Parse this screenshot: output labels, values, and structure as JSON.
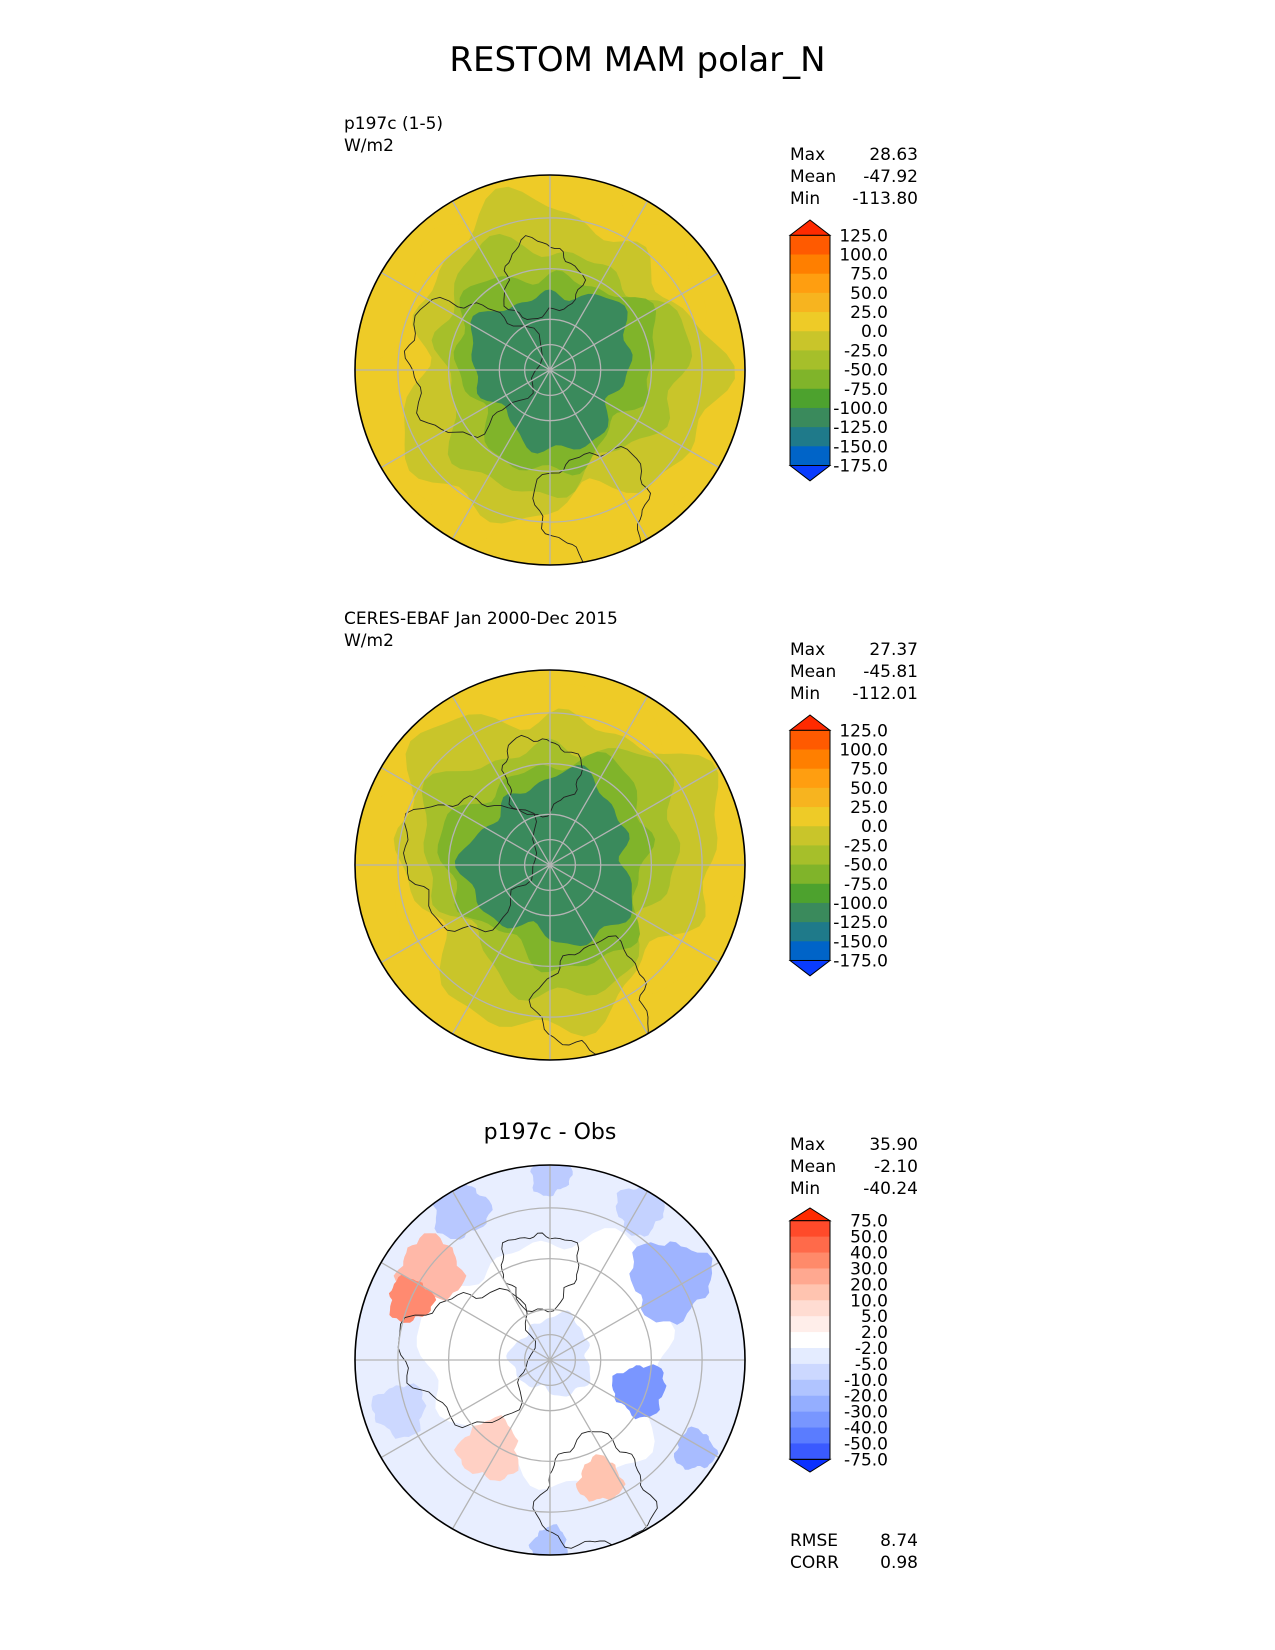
{
  "title": "RESTOM MAM polar_N",
  "chart_data": [
    {
      "type": "heatmap",
      "projection": "north-polar-stereographic",
      "label_left_1": "p197c (1-5)",
      "label_left_2": "W/m2",
      "center_title": "",
      "stats": {
        "max_label": "Max",
        "max": "28.63",
        "mean_label": "Mean",
        "mean": "-47.92",
        "min_label": "Min",
        "min": "-113.80"
      },
      "colorbar": {
        "levels": [
          "125.0",
          "100.0",
          "75.0",
          "50.0",
          "25.0",
          "0.0",
          "-25.0",
          "-50.0",
          "-75.0",
          "-100.0",
          "-125.0",
          "-150.0",
          "-175.0"
        ],
        "colors": [
          "#ff2a00",
          "#ff5a00",
          "#ff7f00",
          "#ff9e10",
          "#f7b41f",
          "#eecb27",
          "#c9c52a",
          "#a6bf2a",
          "#80b42a",
          "#4da22e",
          "#3a8a5c",
          "#1f7a8a",
          "#0064c8",
          "#0a3cff"
        ]
      },
      "rings": [
        {
          "r": 0.94,
          "color": "#eecb27"
        },
        {
          "r": 0.78,
          "color": "#c9c52a"
        },
        {
          "r": 0.62,
          "color": "#a6bf2a"
        },
        {
          "r": 0.5,
          "color": "#80b42a"
        },
        {
          "r": 0.4,
          "color": "#3a8a5c"
        }
      ],
      "gridlines": "on"
    },
    {
      "type": "heatmap",
      "projection": "north-polar-stereographic",
      "label_left_1": "CERES-EBAF Jan 2000-Dec 2015",
      "label_left_2": "W/m2",
      "center_title": "",
      "stats": {
        "max_label": "Max",
        "max": "27.37",
        "mean_label": "Mean",
        "mean": "-45.81",
        "min_label": "Min",
        "min": "-112.01"
      },
      "colorbar": {
        "levels": [
          "125.0",
          "100.0",
          "75.0",
          "50.0",
          "25.0",
          "0.0",
          "-25.0",
          "-50.0",
          "-75.0",
          "-100.0",
          "-125.0",
          "-150.0",
          "-175.0"
        ],
        "colors": [
          "#ff2a00",
          "#ff5a00",
          "#ff7f00",
          "#ff9e10",
          "#f7b41f",
          "#eecb27",
          "#c9c52a",
          "#a6bf2a",
          "#80b42a",
          "#4da22e",
          "#3a8a5c",
          "#1f7a8a",
          "#0064c8",
          "#0a3cff"
        ]
      },
      "rings": [
        {
          "r": 0.96,
          "color": "#eecb27"
        },
        {
          "r": 0.8,
          "color": "#c9c52a"
        },
        {
          "r": 0.64,
          "color": "#a6bf2a"
        },
        {
          "r": 0.52,
          "color": "#80b42a"
        },
        {
          "r": 0.42,
          "color": "#3a8a5c"
        }
      ],
      "gridlines": "on"
    },
    {
      "type": "heatmap",
      "projection": "north-polar-stereographic",
      "label_left_1": "",
      "label_left_2": "",
      "center_title": "p197c - Obs",
      "stats": {
        "max_label": "Max",
        "max": "35.90",
        "mean_label": "Mean",
        "mean": "-2.10",
        "min_label": "Min",
        "min": "-40.24"
      },
      "colorbar": {
        "levels": [
          "75.0",
          "50.0",
          "40.0",
          "30.0",
          "20.0",
          "10.0",
          "5.0",
          "2.0",
          "-2.0",
          "-5.0",
          "-10.0",
          "-20.0",
          "-30.0",
          "-40.0",
          "-50.0",
          "-75.0"
        ],
        "colors": [
          "#ff2a00",
          "#ff4a2a",
          "#ff6a4a",
          "#ff8a6a",
          "#ffa890",
          "#ffc4b0",
          "#ffdcd2",
          "#ffeeea",
          "#ffffff",
          "#e4ecff",
          "#ccd8ff",
          "#b0c4ff",
          "#94aeff",
          "#7896ff",
          "#5a7cff",
          "#3a5aff",
          "#0a30ff"
        ]
      },
      "rings": [
        {
          "r": 0.98,
          "color": "#e8eeff"
        },
        {
          "r": 0.62,
          "color": "#ffffff"
        },
        {
          "r": 0.2,
          "color": "#dde6ff"
        }
      ],
      "footer": {
        "rmse_label": "RMSE",
        "rmse": "8.74",
        "corr_label": "CORR",
        "corr": "0.98"
      },
      "gridlines": "on"
    }
  ]
}
